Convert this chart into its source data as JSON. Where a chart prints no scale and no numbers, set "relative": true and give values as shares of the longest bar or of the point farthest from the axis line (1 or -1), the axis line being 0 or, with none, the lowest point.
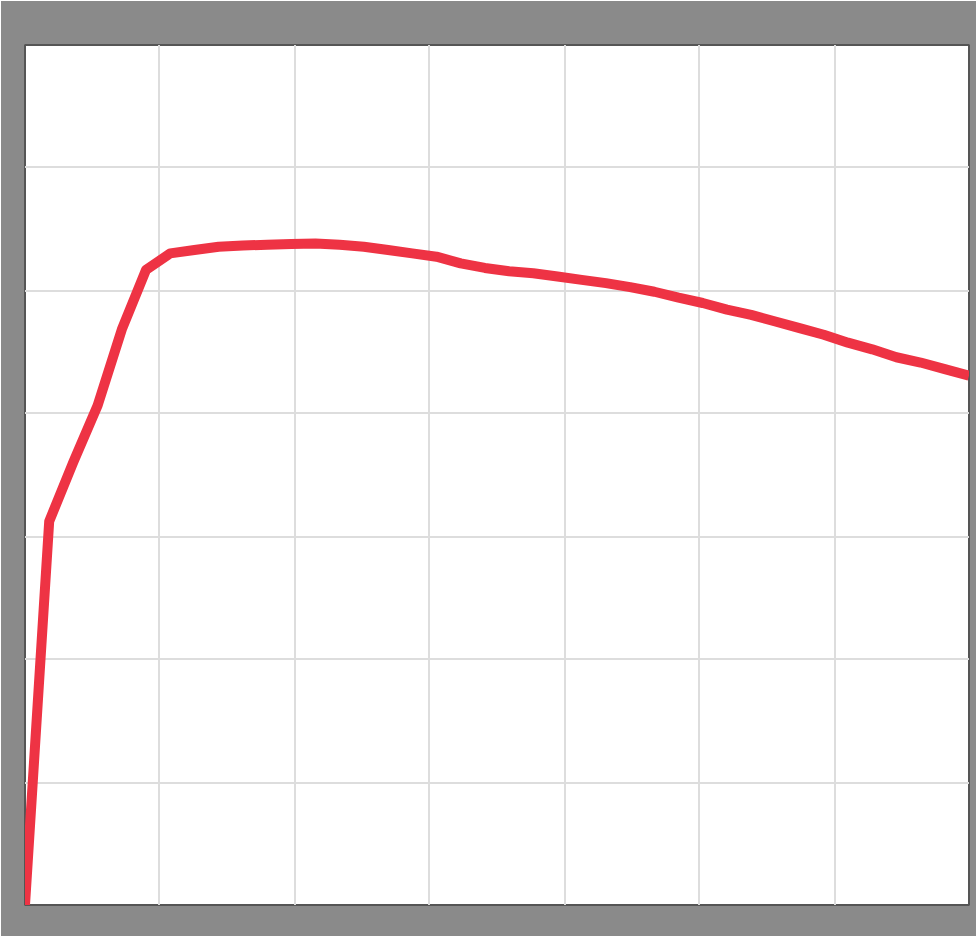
{
  "chart_data": {
    "type": "line",
    "relative": true,
    "grid": true,
    "categories": [
      null,
      null,
      null,
      null,
      null,
      null,
      null,
      null,
      null,
      null,
      null,
      null,
      null,
      null,
      null,
      null,
      null,
      null,
      null,
      null,
      null,
      null,
      null,
      null,
      null,
      null,
      null,
      null,
      null,
      null,
      null,
      null,
      null,
      null,
      null,
      null,
      null,
      null,
      null,
      null
    ],
    "series": [
      {
        "color": "#ee3344",
        "values": [
          0,
          0.58,
          0.67,
          0.755,
          0.87,
          0.96,
          0.985,
          0.99,
          0.995,
          0.997,
          0.998,
          0.999,
          1,
          0.998,
          0.995,
          0.99,
          0.985,
          0.98,
          0.97,
          0.963,
          0.958,
          0.955,
          0.95,
          0.945,
          0.94,
          0.934,
          0.927,
          0.918,
          0.91,
          0.9,
          0.892,
          0.882,
          0.872,
          0.862,
          0.85,
          0.84,
          0.828,
          0.82,
          0.81,
          0.8
        ]
      }
    ]
  }
}
